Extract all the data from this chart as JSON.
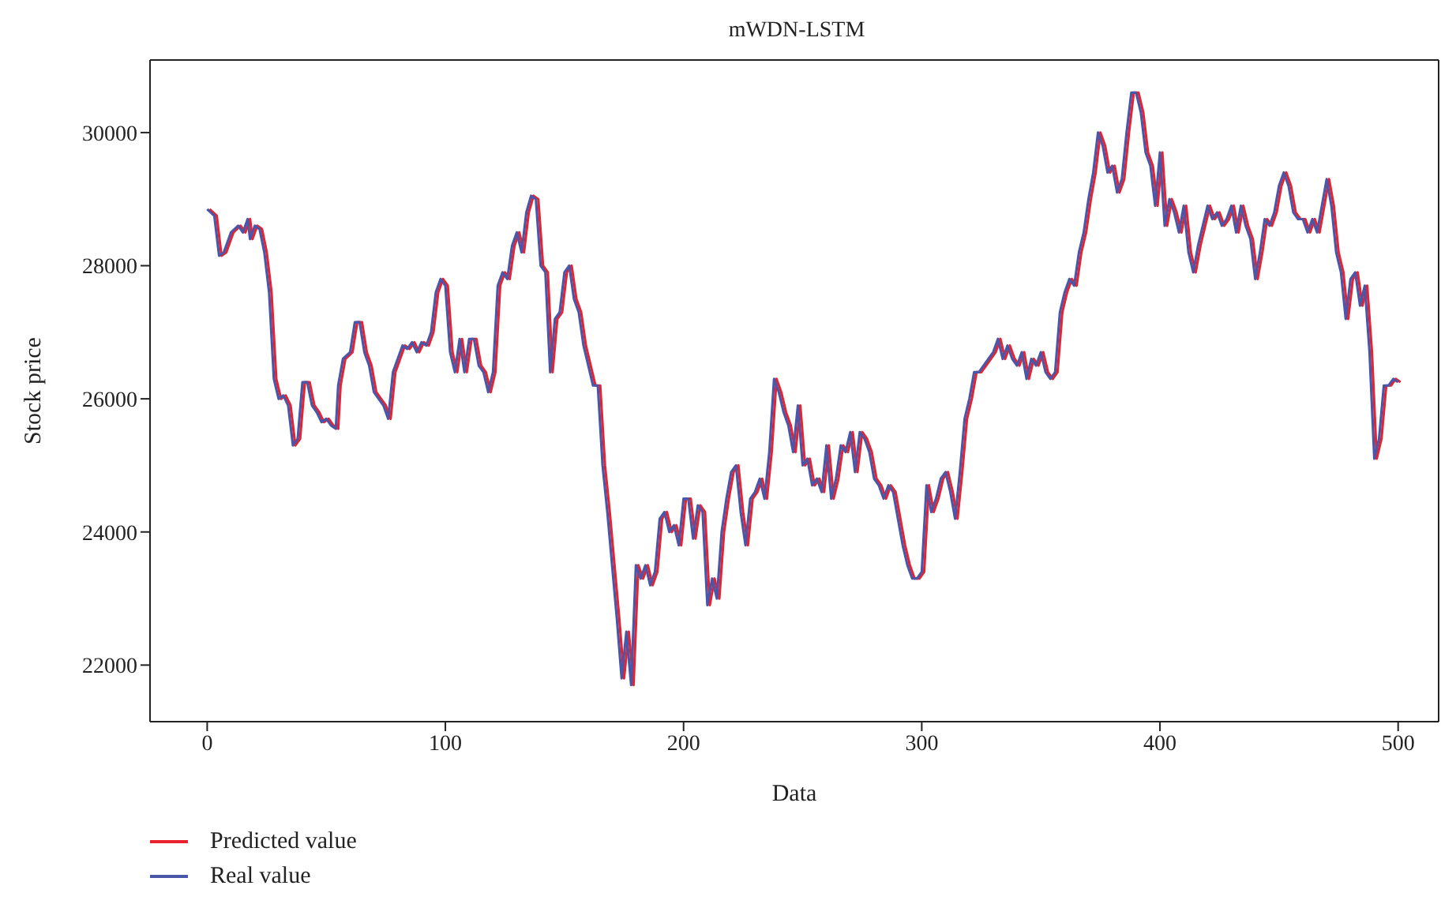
{
  "chart_data": {
    "type": "line",
    "title": "mWDN-LSTM",
    "xlabel": "Data",
    "ylabel": "Stock price",
    "xlim": [
      -24,
      517
    ],
    "ylim": [
      21150,
      31090
    ],
    "xticks": [
      0,
      100,
      200,
      300,
      400,
      500
    ],
    "yticks": [
      22000,
      24000,
      26000,
      28000,
      30000
    ],
    "legend": "bottom left",
    "marker": "none",
    "line_style": "solid",
    "series": [
      {
        "name": "Predicted value",
        "color": "#e8232f",
        "x": [
          1,
          4,
          6,
          8,
          11,
          14,
          16,
          18,
          19,
          21,
          23,
          25,
          27,
          29,
          31,
          33,
          35,
          37,
          39,
          41,
          43,
          45,
          47,
          49,
          51,
          53,
          55,
          56,
          58,
          61,
          63,
          65,
          67,
          69,
          71,
          73,
          75,
          77,
          79,
          81,
          83,
          85,
          87,
          89,
          91,
          93,
          95,
          97,
          99,
          101,
          103,
          105,
          107,
          109,
          111,
          113,
          115,
          117,
          119,
          121,
          123,
          125,
          127,
          129,
          131,
          133,
          135,
          137,
          139,
          141,
          143,
          145,
          147,
          149,
          151,
          153,
          155,
          157,
          159,
          161,
          163,
          165,
          167,
          169,
          171,
          173,
          175,
          177,
          179,
          181,
          183,
          185,
          187,
          189,
          191,
          193,
          195,
          197,
          199,
          201,
          203,
          205,
          207,
          209,
          211,
          213,
          215,
          217,
          219,
          221,
          223,
          225,
          227,
          229,
          231,
          233,
          235,
          237,
          239,
          241,
          243,
          245,
          247,
          249,
          251,
          253,
          255,
          257,
          259,
          261,
          263,
          265,
          267,
          269,
          271,
          273,
          275,
          277,
          279,
          281,
          283,
          285,
          287,
          289,
          291,
          293,
          295,
          297,
          299,
          301,
          303,
          305,
          307,
          309,
          311,
          313,
          315,
          317,
          319,
          321,
          323,
          325,
          327,
          329,
          331,
          333,
          335,
          337,
          339,
          341,
          343,
          345,
          347,
          349,
          351,
          353,
          355,
          357,
          359,
          361,
          363,
          365,
          367,
          369,
          371,
          373,
          375,
          377,
          379,
          381,
          383,
          385,
          387,
          389,
          391,
          393,
          395,
          397,
          399,
          401,
          403,
          405,
          407,
          409,
          411,
          413,
          415,
          417,
          419,
          421,
          423,
          425,
          427,
          429,
          431,
          433,
          435,
          437,
          439,
          441,
          443,
          445,
          447,
          449,
          451,
          453,
          455,
          457,
          459,
          461,
          463,
          465,
          467,
          469,
          471,
          473,
          475,
          477,
          479,
          481,
          483,
          485,
          487,
          489,
          491,
          493,
          495,
          497,
          499,
          501
        ],
        "values": [
          28850,
          28750,
          28150,
          28200,
          28500,
          28600,
          28500,
          28700,
          28400,
          28600,
          28550,
          28200,
          27600,
          26300,
          26000,
          26050,
          25900,
          25300,
          25400,
          26250,
          26250,
          25900,
          25800,
          25650,
          25700,
          25600,
          25550,
          26200,
          26600,
          26700,
          27150,
          27150,
          26700,
          26500,
          26100,
          26000,
          25900,
          25700,
          26400,
          26600,
          26800,
          26750,
          26850,
          26700,
          26850,
          26800,
          27000,
          27600,
          27800,
          27700,
          26700,
          26400,
          26900,
          26400,
          26900,
          26900,
          26500,
          26400,
          26100,
          26400,
          27700,
          27900,
          27800,
          28300,
          28500,
          28200,
          28800,
          29050,
          29000,
          28000,
          27900,
          26400,
          27200,
          27300,
          27900,
          28000,
          27500,
          27300,
          26800,
          26500,
          26200,
          26200,
          25000,
          24300,
          23500,
          22700,
          21800,
          22500,
          21700,
          23500,
          23300,
          23500,
          23200,
          23400,
          24200,
          24300,
          24000,
          24100,
          23800,
          24500,
          24500,
          23900,
          24400,
          24300,
          22900,
          23300,
          23000,
          24000,
          24500,
          24900,
          25000,
          24300,
          23800,
          24500,
          24600,
          24800,
          24500,
          25200,
          26300,
          26100,
          25800,
          25600,
          25200,
          25900,
          25000,
          25100,
          24700,
          24800,
          24600,
          25300,
          24500,
          24800,
          25300,
          25200,
          25500,
          24900,
          25500,
          25400,
          25200,
          24800,
          24700,
          24500,
          24700,
          24600,
          24200,
          23800,
          23500,
          23300,
          23300,
          23400,
          24700,
          24300,
          24500,
          24800,
          24900,
          24600,
          24200,
          24900,
          25700,
          26000,
          26400,
          26400,
          26500,
          26600,
          26700,
          26900,
          26600,
          26800,
          26600,
          26500,
          26700,
          26300,
          26600,
          26500,
          26700,
          26400,
          26300,
          26400,
          27300,
          27600,
          27800,
          27700,
          28200,
          28500,
          29000,
          29400,
          30000,
          29800,
          29400,
          29500,
          29100,
          29300,
          30000,
          30600,
          30600,
          30300,
          29700,
          29500,
          28900,
          29700,
          28600,
          29000,
          28800,
          28500,
          28900,
          28200,
          27900,
          28300,
          28600,
          28900,
          28700,
          28800,
          28600,
          28700,
          28900,
          28500,
          28900,
          28600,
          28400,
          27800,
          28200,
          28700,
          28600,
          28800,
          29200,
          29400,
          29200,
          28800,
          28700,
          28700,
          28500,
          28700,
          28500,
          28900,
          29300,
          28900,
          28200,
          27900,
          27200,
          27800,
          27900,
          27400,
          27700,
          26700,
          25100,
          25400,
          26200,
          26200,
          26300,
          26250
        ]
      },
      {
        "name": "Real value",
        "color": "#4a56a8",
        "x": [
          0,
          3,
          5,
          7,
          10,
          13,
          15,
          17,
          18,
          20,
          22,
          24,
          26,
          28,
          30,
          32,
          34,
          36,
          38,
          40,
          42,
          44,
          46,
          48,
          50,
          52,
          54,
          55,
          57,
          60,
          62,
          64,
          66,
          68,
          70,
          72,
          74,
          76,
          78,
          80,
          82,
          84,
          86,
          88,
          90,
          92,
          94,
          96,
          98,
          100,
          102,
          104,
          106,
          108,
          110,
          112,
          114,
          116,
          118,
          120,
          122,
          124,
          126,
          128,
          130,
          132,
          134,
          136,
          138,
          140,
          142,
          144,
          146,
          148,
          150,
          152,
          154,
          156,
          158,
          160,
          162,
          164,
          166,
          168,
          170,
          172,
          174,
          176,
          178,
          180,
          182,
          184,
          186,
          188,
          190,
          192,
          194,
          196,
          198,
          200,
          202,
          204,
          206,
          208,
          210,
          212,
          214,
          216,
          218,
          220,
          222,
          224,
          226,
          228,
          230,
          232,
          234,
          236,
          238,
          240,
          242,
          244,
          246,
          248,
          250,
          252,
          254,
          256,
          258,
          260,
          262,
          264,
          266,
          268,
          270,
          272,
          274,
          276,
          278,
          280,
          282,
          284,
          286,
          288,
          290,
          292,
          294,
          296,
          298,
          300,
          302,
          304,
          306,
          308,
          310,
          312,
          314,
          316,
          318,
          320,
          322,
          324,
          326,
          328,
          330,
          332,
          334,
          336,
          338,
          340,
          342,
          344,
          346,
          348,
          350,
          352,
          354,
          356,
          358,
          360,
          362,
          364,
          366,
          368,
          370,
          372,
          374,
          376,
          378,
          380,
          382,
          384,
          386,
          388,
          390,
          392,
          394,
          396,
          398,
          400,
          402,
          404,
          406,
          408,
          410,
          412,
          414,
          416,
          418,
          420,
          422,
          424,
          426,
          428,
          430,
          432,
          434,
          436,
          438,
          440,
          442,
          444,
          446,
          448,
          450,
          452,
          454,
          456,
          458,
          460,
          462,
          464,
          466,
          468,
          470,
          472,
          474,
          476,
          478,
          480,
          482,
          484,
          486,
          488,
          490,
          492,
          494,
          496,
          498,
          500
        ],
        "values": [
          28850,
          28750,
          28150,
          28200,
          28500,
          28600,
          28500,
          28700,
          28400,
          28600,
          28550,
          28200,
          27600,
          26300,
          26000,
          26050,
          25900,
          25300,
          25400,
          26250,
          26250,
          25900,
          25800,
          25650,
          25700,
          25600,
          25550,
          26200,
          26600,
          26700,
          27150,
          27150,
          26700,
          26500,
          26100,
          26000,
          25900,
          25700,
          26400,
          26600,
          26800,
          26750,
          26850,
          26700,
          26850,
          26800,
          27000,
          27600,
          27800,
          27700,
          26700,
          26400,
          26900,
          26400,
          26900,
          26900,
          26500,
          26400,
          26100,
          26400,
          27700,
          27900,
          27800,
          28300,
          28500,
          28200,
          28800,
          29050,
          29000,
          28000,
          27900,
          26400,
          27200,
          27300,
          27900,
          28000,
          27500,
          27300,
          26800,
          26500,
          26200,
          26200,
          25000,
          24300,
          23500,
          22700,
          21800,
          22500,
          21700,
          23500,
          23300,
          23500,
          23200,
          23400,
          24200,
          24300,
          24000,
          24100,
          23800,
          24500,
          24500,
          23900,
          24400,
          24300,
          22900,
          23300,
          23000,
          24000,
          24500,
          24900,
          25000,
          24300,
          23800,
          24500,
          24600,
          24800,
          24500,
          25200,
          26300,
          26100,
          25800,
          25600,
          25200,
          25900,
          25000,
          25100,
          24700,
          24800,
          24600,
          25300,
          24500,
          24800,
          25300,
          25200,
          25500,
          24900,
          25500,
          25400,
          25200,
          24800,
          24700,
          24500,
          24700,
          24600,
          24200,
          23800,
          23500,
          23300,
          23300,
          23400,
          24700,
          24300,
          24500,
          24800,
          24900,
          24600,
          24200,
          24900,
          25700,
          26000,
          26400,
          26400,
          26500,
          26600,
          26700,
          26900,
          26600,
          26800,
          26600,
          26500,
          26700,
          26300,
          26600,
          26500,
          26700,
          26400,
          26300,
          26400,
          27300,
          27600,
          27800,
          27700,
          28200,
          28500,
          29000,
          29400,
          30000,
          29800,
          29400,
          29500,
          29100,
          29300,
          30000,
          30600,
          30600,
          30300,
          29700,
          29500,
          28900,
          29700,
          28600,
          29000,
          28800,
          28500,
          28900,
          28200,
          27900,
          28300,
          28600,
          28900,
          28700,
          28800,
          28600,
          28700,
          28900,
          28500,
          28900,
          28600,
          28400,
          27800,
          28200,
          28700,
          28600,
          28800,
          29200,
          29400,
          29200,
          28800,
          28700,
          28700,
          28500,
          28700,
          28500,
          28900,
          29300,
          28900,
          28200,
          27900,
          27200,
          27800,
          27900,
          27400,
          27700,
          26700,
          25100,
          25400,
          26200,
          26200,
          26300,
          26250
        ]
      }
    ]
  }
}
